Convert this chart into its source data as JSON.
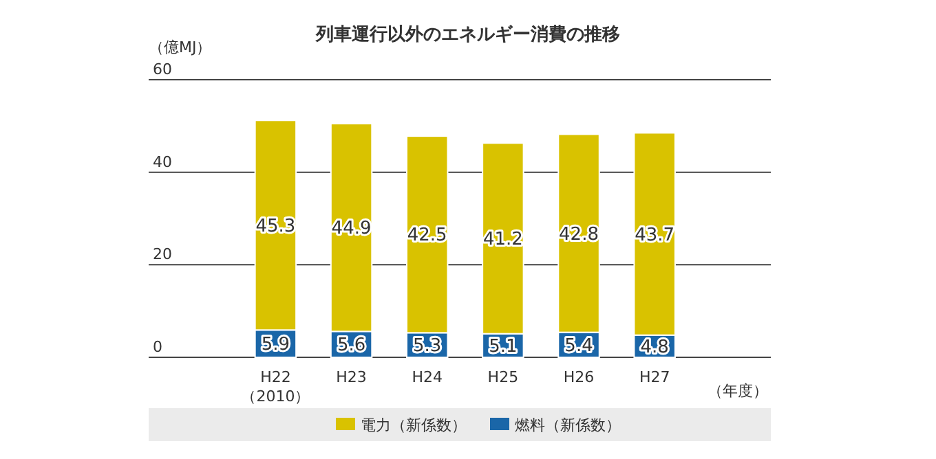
{
  "chart_data": {
    "type": "bar",
    "title": "列車運行以外のエネルギー消費の推移",
    "ylabel": "（億MJ）",
    "xlabel": "（年度）",
    "categories": [
      "H22\n（2010）",
      "H23",
      "H24",
      "H25",
      "H26",
      "H27"
    ],
    "stacked": true,
    "data_labels": true,
    "legend": "bottom",
    "grid": "y",
    "ylim": [
      0,
      60
    ],
    "yticks": [
      0,
      20,
      40,
      60
    ],
    "series": [
      {
        "name": "燃料（新係数）",
        "color": "#1a66a8",
        "values": [
          5.9,
          5.6,
          5.3,
          5.1,
          5.4,
          4.8
        ]
      },
      {
        "name": "電力（新係数）",
        "color": "#d9c200",
        "values": [
          45.3,
          44.9,
          42.5,
          41.2,
          42.8,
          43.7
        ]
      }
    ]
  }
}
